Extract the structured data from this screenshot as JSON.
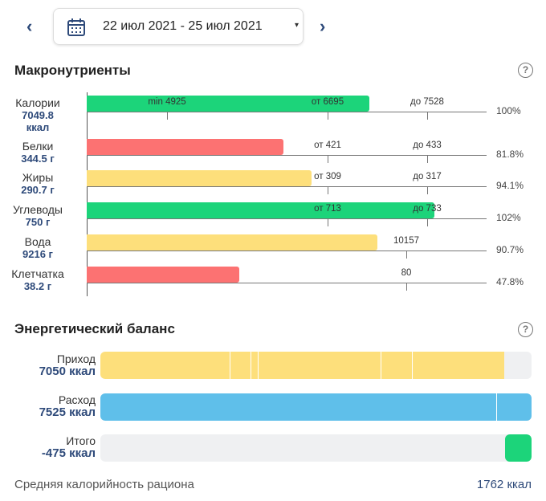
{
  "header": {
    "date_range": "22 июл 2021 - 25 июл 2021",
    "prev_icon": "chevron-left-icon",
    "next_icon": "chevron-right-icon",
    "calendar_icon": "calendar-icon",
    "dropdown": "▾"
  },
  "macros": {
    "title": "Макронутриенты",
    "help": "?",
    "rows": [
      {
        "name": "Калории",
        "value": "7049.8",
        "unit": "ккал",
        "ticks": [
          "min 4925",
          "от 6695",
          "до 7528"
        ],
        "percent": "100%",
        "status": "green"
      },
      {
        "name": "Белки",
        "value": "344.5 г",
        "ticks": [
          "от 421",
          "до 433"
        ],
        "percent": "81.8%",
        "status": "red"
      },
      {
        "name": "Жиры",
        "value": "290.7 г",
        "ticks": [
          "от 309",
          "до 317"
        ],
        "percent": "94.1%",
        "status": "yellow"
      },
      {
        "name": "Углеводы",
        "value": "750 г",
        "ticks": [
          "от 713",
          "до 733"
        ],
        "percent": "102%",
        "status": "green"
      },
      {
        "name": "Вода",
        "value": "9216 г",
        "ticks": [
          "10157"
        ],
        "percent": "90.7%",
        "status": "yellow"
      },
      {
        "name": "Клетчатка",
        "value": "38.2 г",
        "ticks": [
          "80"
        ],
        "percent": "47.8%",
        "status": "red"
      }
    ]
  },
  "energy": {
    "title": "Энергетический баланс",
    "help": "?",
    "rows": [
      {
        "label": "Приход",
        "value": "7050 ккал"
      },
      {
        "label": "Расход",
        "value": "7525 ккал"
      },
      {
        "label": "Итого",
        "value": "-475 ккал"
      }
    ],
    "avg_label": "Средняя калорийность рациона",
    "avg_value": "1762 ккал"
  },
  "colors": {
    "green": "#1cd47a",
    "red": "#fc7272",
    "yellow": "#fddf7b",
    "blue": "#5fbfea",
    "navy": "#2e4a7a"
  }
}
